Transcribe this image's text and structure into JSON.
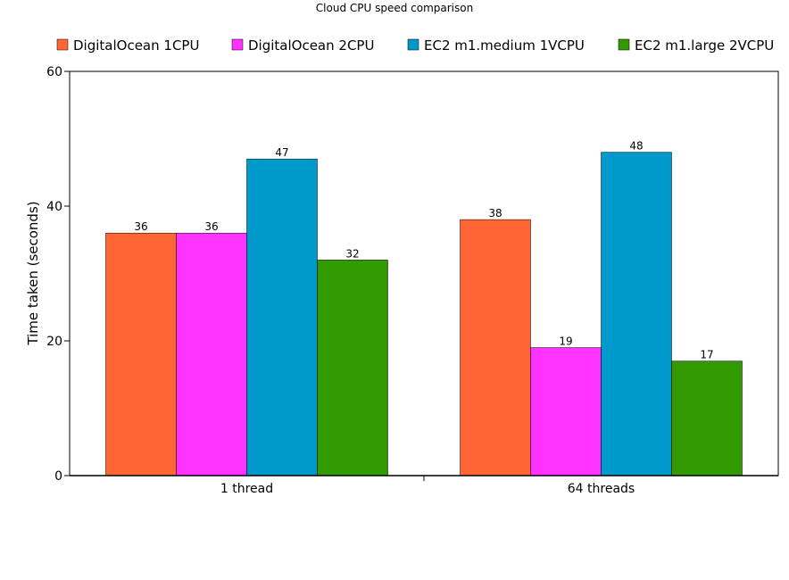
{
  "chart_data": {
    "type": "bar",
    "title": "Cloud CPU speed comparison",
    "ylabel": "Time taken (seconds)",
    "xlabel": "",
    "categories": [
      "1 thread",
      "64 threads"
    ],
    "series": [
      {
        "name": "DigitalOcean 1CPU",
        "color": "#ff6633",
        "values": [
          36,
          38
        ]
      },
      {
        "name": "DigitalOcean 2CPU",
        "color": "#ff33ff",
        "values": [
          36,
          19
        ]
      },
      {
        "name": "EC2 m1.medium 1VCPU",
        "color": "#0099cc",
        "values": [
          47,
          48
        ]
      },
      {
        "name": "EC2 m1.large 2VCPU",
        "color": "#339900",
        "values": [
          32,
          17
        ]
      }
    ],
    "ylim": [
      0,
      60
    ],
    "yticks": [
      0,
      20,
      40,
      60
    ],
    "legend_position": "top",
    "grid": false,
    "data_labels": true
  }
}
